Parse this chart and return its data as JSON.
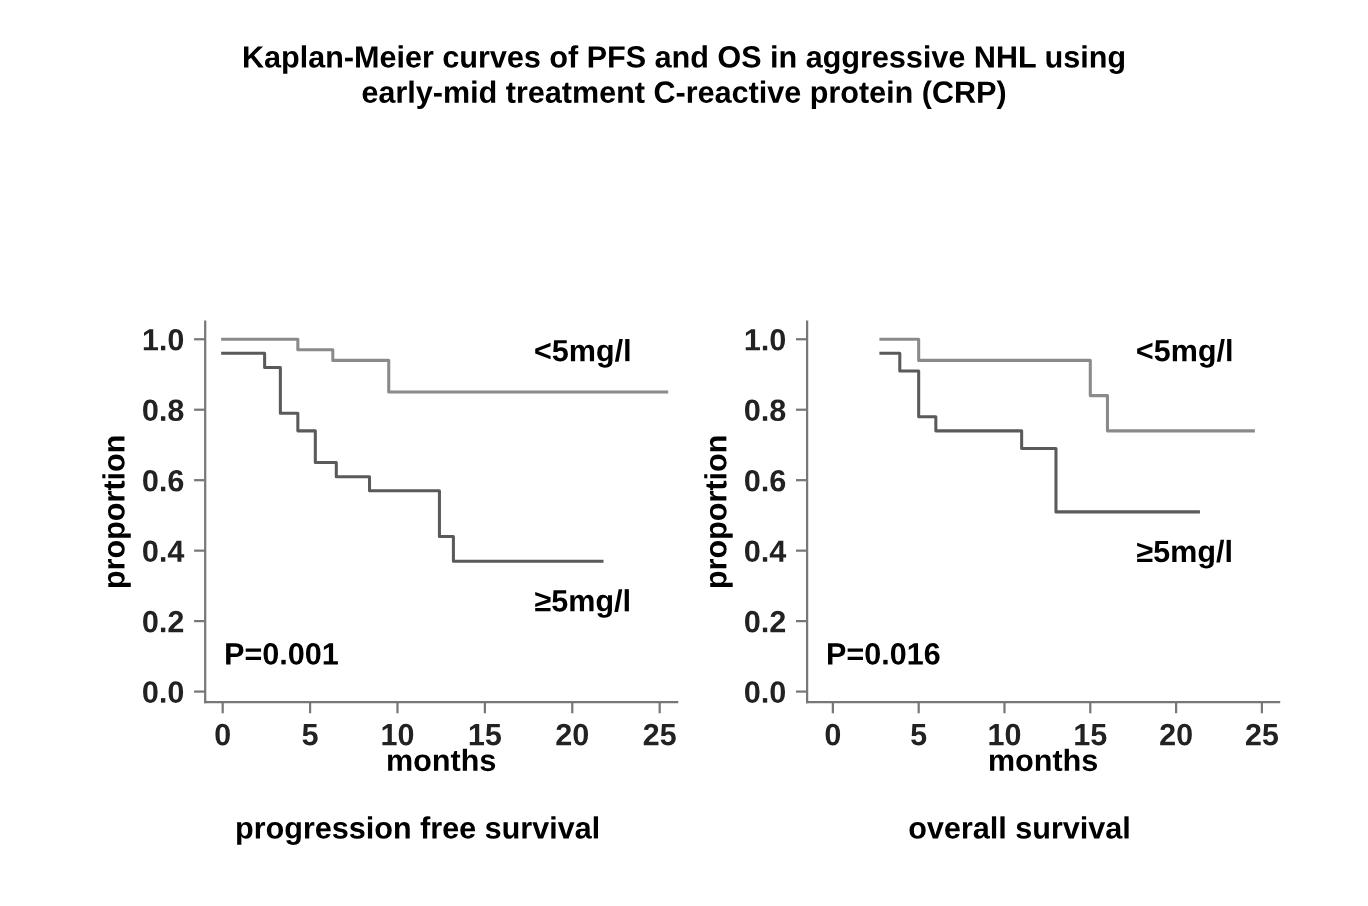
{
  "chart_data": [
    {
      "type": "step",
      "title": "Kaplan-Meier curves of PFS and OS in aggressive NHL using\nearly-mid treatment C-reactive protein (CRP)",
      "xlabel": "months",
      "ylabel": "proportion",
      "series": [
        {
          "name": "<5mg/l",
          "color": "#8a8a8a",
          "x": [
            0,
            4.3,
            6.3,
            9.5,
            25.4
          ],
          "values": [
            1.0,
            0.97,
            0.94,
            0.85,
            0.85
          ]
        },
        {
          "name": "≥5mg/l",
          "color": "#5a5a5a",
          "x": [
            0,
            2.4,
            3.3,
            4.3,
            5.3,
            6.5,
            8.4,
            12.4,
            13.2,
            21.7
          ],
          "values": [
            0.96,
            0.92,
            0.79,
            0.74,
            0.65,
            0.61,
            0.57,
            0.44,
            0.37,
            0.37
          ]
        }
      ],
      "annotations": [
        "P=0.001",
        "progression free survival"
      ],
      "xlim": [
        -1,
        26
      ],
      "ylim": [
        -0.03,
        1.05
      ],
      "xticks": [
        0,
        5,
        10,
        15,
        20,
        25
      ],
      "yticks": [
        {
          "value": 0,
          "label": "0.0"
        },
        {
          "value": 0.2,
          "label": "0.2"
        },
        {
          "value": 0.4,
          "label": "0.4"
        },
        {
          "value": 0.6,
          "label": "0.6"
        },
        {
          "value": 0.8,
          "label": "0.8"
        },
        {
          "value": 1,
          "label": "1.0"
        }
      ],
      "grid": false,
      "legend": false,
      "marker": "none",
      "line_style": "solid"
    },
    {
      "type": "step",
      "xlabel": "months",
      "ylabel": "proportion",
      "series": [
        {
          "name": "<5mg/l",
          "color": "#8a8a8a",
          "x": [
            2.8,
            5.0,
            15.0,
            16.0,
            24.5
          ],
          "values": [
            1.0,
            0.94,
            0.84,
            0.74,
            0.74
          ]
        },
        {
          "name": "≥5mg/l",
          "color": "#5a5a5a",
          "x": [
            2.8,
            3.9,
            5.0,
            6.0,
            11.0,
            13.0,
            21.3
          ],
          "values": [
            0.96,
            0.91,
            0.78,
            0.74,
            0.69,
            0.51,
            0.51
          ]
        }
      ],
      "annotations": [
        "P=0.016",
        "overall survival"
      ],
      "xlim": [
        -1.5,
        26
      ],
      "ylim": [
        -0.03,
        1.05
      ],
      "xticks": [
        0,
        5,
        10,
        15,
        20,
        25
      ],
      "yticks": [
        {
          "value": 0,
          "label": "0.0"
        },
        {
          "value": 0.2,
          "label": "0.2"
        },
        {
          "value": 0.4,
          "label": "0.4"
        },
        {
          "value": 0.6,
          "label": "0.6"
        },
        {
          "value": 0.8,
          "label": "0.8"
        },
        {
          "value": 1,
          "label": "1.0"
        }
      ],
      "grid": false,
      "legend": false,
      "marker": "none",
      "line_style": "solid"
    }
  ]
}
